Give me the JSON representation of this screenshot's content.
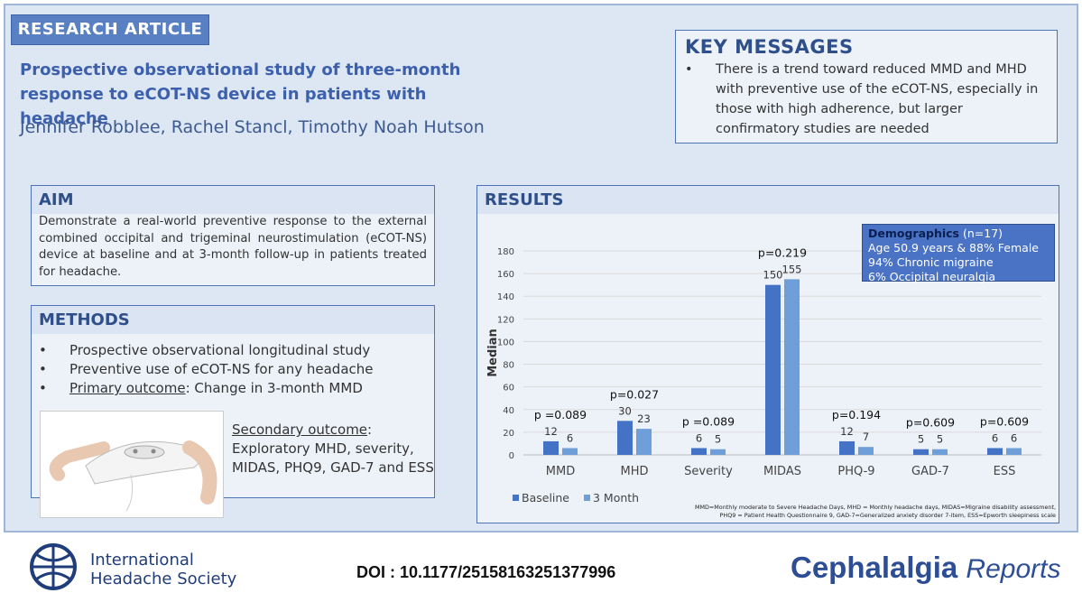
{
  "header": {
    "label": "RESEARCH ARTICLE",
    "title": "Prospective observational study of three-month response to eCOT-NS device in patients with headache",
    "authors": "Jennifer Robblee, Rachel Stancl, Timothy Noah Hutson"
  },
  "key_messages": {
    "heading": "KEY MESSAGES",
    "items": [
      "There is a trend toward reduced MMD and MHD with preventive use of the eCOT-NS, especially in those with high adherence, but larger confirmatory studies are needed"
    ]
  },
  "aim": {
    "heading": "AIM",
    "text": "Demonstrate a real-world preventive response to the external combined occipital and trigeminal neurostimulation (eCOT-NS) device at baseline and at 3-month follow-up in patients treated for headache."
  },
  "methods": {
    "heading": "METHODS",
    "items": [
      "Prospective observational longitudinal study",
      "Preventive use of eCOT-NS for any headache"
    ],
    "primary": {
      "label": "Primary outcome",
      "text": ": Change in 3-month MMD"
    },
    "secondary": {
      "label": "Secondary outcome",
      "text": ": Exploratory MHD, severity, MIDAS, PHQ9, GAD-7 and ESS"
    }
  },
  "results": {
    "heading": "RESULTS",
    "demographics": {
      "label": "Demographics",
      "n": "(n=17)",
      "lines": [
        "Age 50.9 years & 88% Female",
        "94% Chronic migraine",
        "6% Occipital neuralgia"
      ]
    },
    "footnote": [
      "MMD=Monthly moderate to Severe Headache Days, MHD = Monthly headache days, MIDAS=Migraine disability assessment,",
      "PHQ9 = Patient Health Questionnaire 9, GAD-7=Generalized anxiety disorder 7-item, ESS=Epworth sleepiness scale"
    ]
  },
  "chart_data": {
    "type": "bar",
    "y_label": "Median",
    "categories": [
      "MMD",
      "MHD",
      "Severity",
      "MIDAS",
      "PHQ-9",
      "GAD-7",
      "ESS"
    ],
    "series": [
      {
        "name": "Baseline",
        "color": "#4472c4",
        "values": [
          12,
          30,
          6,
          150,
          12,
          5,
          6
        ]
      },
      {
        "name": "3 Month",
        "color": "#6f9fd8",
        "values": [
          6,
          23,
          5,
          155,
          7,
          5,
          6
        ]
      }
    ],
    "annotations": [
      "p =0.089",
      "p=0.027",
      "p =0.089",
      "p=0.219",
      "p=0.194",
      "p=0.609",
      "p=0.609"
    ],
    "ylim": [
      0,
      180
    ],
    "yticks": [
      0,
      20,
      40,
      60,
      80,
      100,
      120,
      140,
      160,
      180
    ],
    "grid": true,
    "legend": "bottom"
  },
  "footer": {
    "society": [
      "International",
      "Headache Society"
    ],
    "doi": "DOI : 10.1177/25158163251377996",
    "journal": "Cephalalgia",
    "journal_suffix": "Reports"
  }
}
